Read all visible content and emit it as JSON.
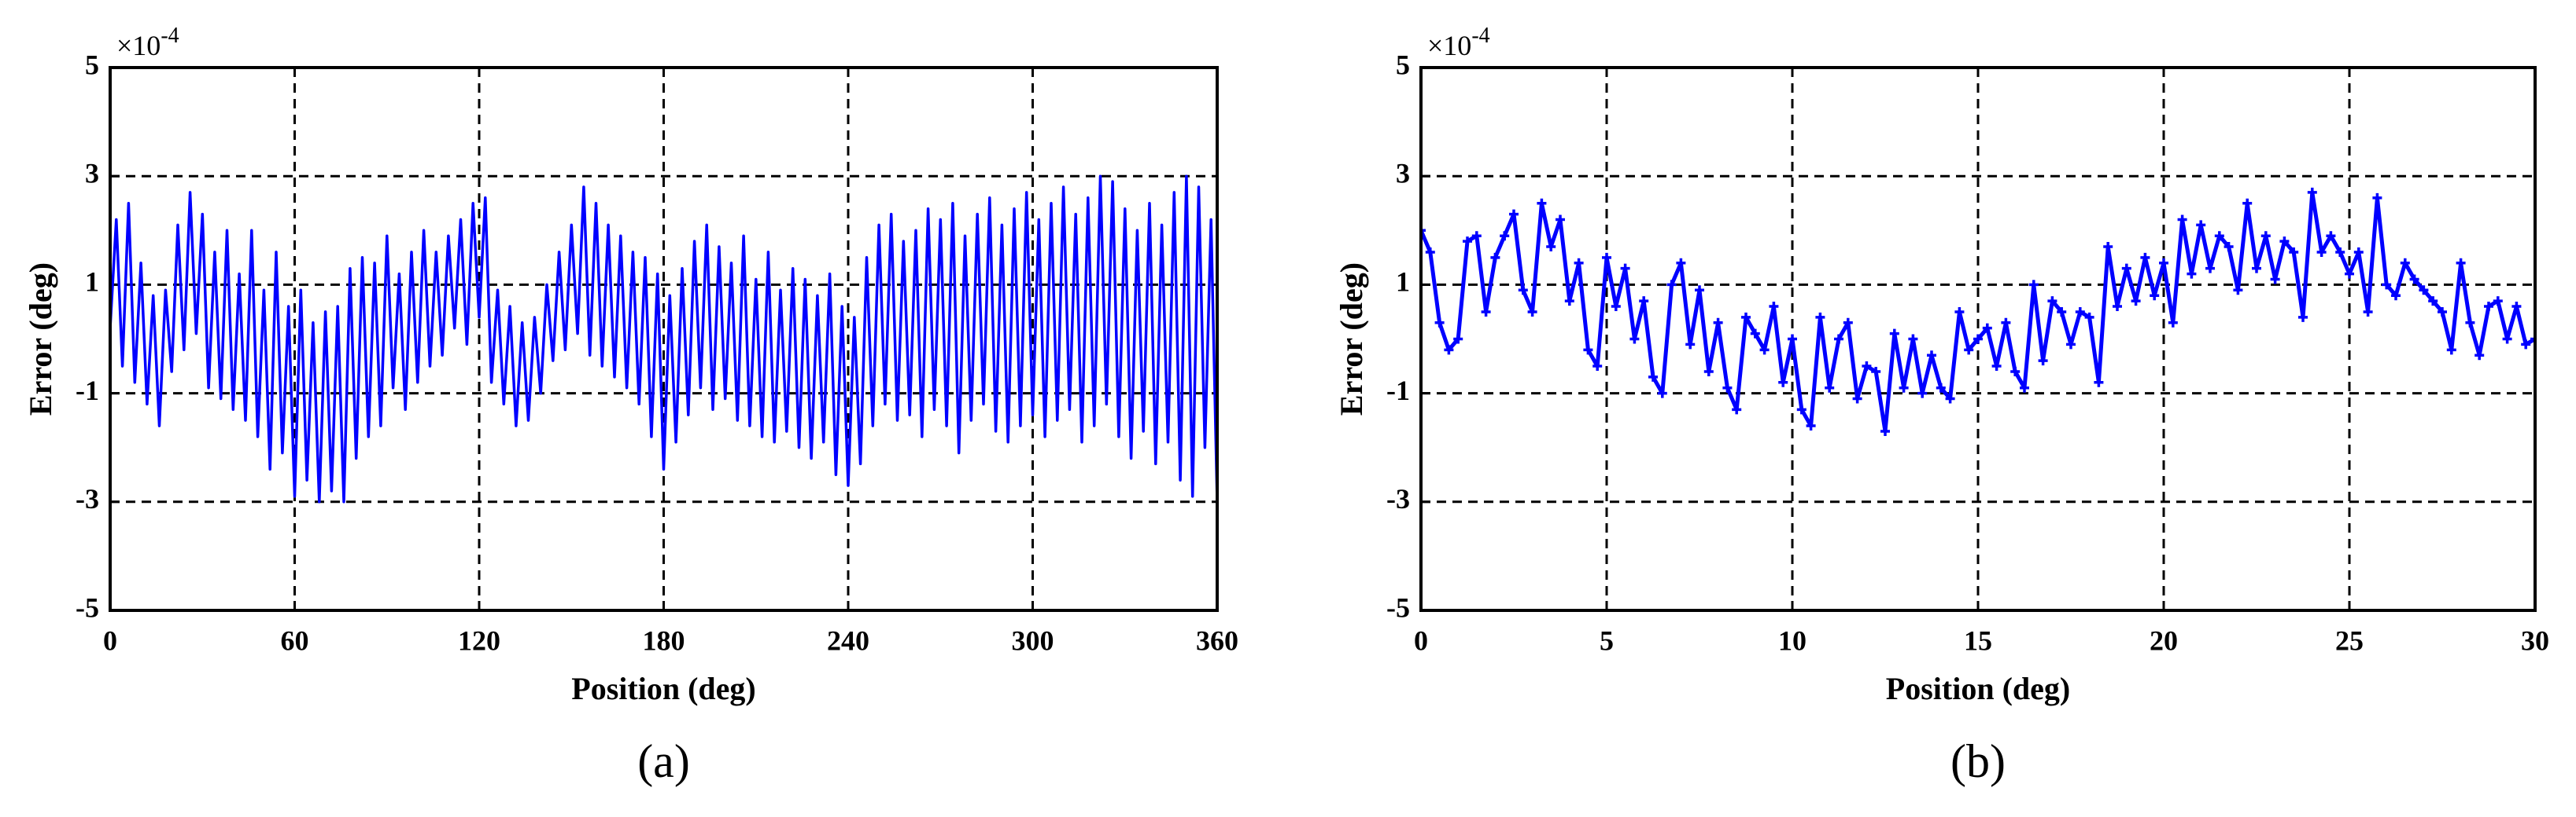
{
  "chart_data": [
    {
      "type": "line",
      "panel_label": "(a)",
      "x_label": "Position (deg)",
      "y_label": "Error (deg)",
      "y_exponent": {
        "base": "×10",
        "power": "-4"
      },
      "xlim": [
        0,
        360
      ],
      "xticks": [
        0,
        60,
        120,
        180,
        240,
        300,
        360
      ],
      "ylim": [
        -5,
        5
      ],
      "yticks": [
        -5,
        -3,
        -1,
        1,
        3,
        5
      ],
      "grid": true,
      "markers": false,
      "series": [
        {
          "color": "#0000ff",
          "x": [
            0,
            2,
            4,
            6,
            8,
            10,
            12,
            14,
            16,
            18,
            20,
            22,
            24,
            26,
            28,
            30,
            32,
            34,
            36,
            38,
            40,
            42,
            44,
            46,
            48,
            50,
            52,
            54,
            56,
            58,
            60,
            62,
            64,
            66,
            68,
            70,
            72,
            74,
            76,
            78,
            80,
            82,
            84,
            86,
            88,
            90,
            92,
            94,
            96,
            98,
            100,
            102,
            104,
            106,
            108,
            110,
            112,
            114,
            116,
            118,
            120,
            122,
            124,
            126,
            128,
            130,
            132,
            134,
            136,
            138,
            140,
            142,
            144,
            146,
            148,
            150,
            152,
            154,
            156,
            158,
            160,
            162,
            164,
            166,
            168,
            170,
            172,
            174,
            176,
            178,
            180,
            182,
            184,
            186,
            188,
            190,
            192,
            194,
            196,
            198,
            200,
            202,
            204,
            206,
            208,
            210,
            212,
            214,
            216,
            218,
            220,
            222,
            224,
            226,
            228,
            230,
            232,
            234,
            236,
            238,
            240,
            242,
            244,
            246,
            248,
            250,
            252,
            254,
            256,
            258,
            260,
            262,
            264,
            266,
            268,
            270,
            272,
            274,
            276,
            278,
            280,
            282,
            284,
            286,
            288,
            290,
            292,
            294,
            296,
            298,
            300,
            302,
            304,
            306,
            308,
            310,
            312,
            314,
            316,
            318,
            320,
            322,
            324,
            326,
            328,
            330,
            332,
            334,
            336,
            338,
            340,
            342,
            344,
            346,
            348,
            350,
            352,
            354,
            356,
            358,
            360
          ],
          "values": [
            0.2,
            2.2,
            -0.5,
            2.5,
            -0.8,
            1.4,
            -1.2,
            0.8,
            -1.6,
            0.9,
            -0.6,
            2.1,
            -0.2,
            2.7,
            0.1,
            2.3,
            -0.9,
            1.6,
            -1.1,
            2.0,
            -1.3,
            1.2,
            -1.5,
            2.0,
            -1.8,
            0.9,
            -2.4,
            1.6,
            -2.1,
            0.6,
            -2.9,
            0.9,
            -2.6,
            0.3,
            -3.0,
            0.5,
            -2.8,
            0.6,
            -3.0,
            1.3,
            -2.2,
            1.5,
            -1.8,
            1.4,
            -1.6,
            1.9,
            -0.9,
            1.2,
            -1.3,
            1.6,
            -0.8,
            2.0,
            -0.5,
            1.6,
            -0.3,
            1.9,
            0.2,
            2.2,
            -0.1,
            2.5,
            0.4,
            2.6,
            -0.8,
            0.9,
            -1.2,
            0.6,
            -1.6,
            0.3,
            -1.5,
            0.4,
            -1.0,
            1.0,
            -0.4,
            1.6,
            -0.2,
            2.1,
            0.1,
            2.8,
            -0.3,
            2.5,
            -0.5,
            2.1,
            -0.7,
            1.9,
            -0.9,
            1.6,
            -1.2,
            1.5,
            -1.8,
            1.2,
            -2.4,
            0.8,
            -1.9,
            1.3,
            -1.4,
            1.8,
            -0.9,
            2.1,
            -1.3,
            1.7,
            -1.1,
            1.4,
            -1.5,
            1.9,
            -1.6,
            1.1,
            -1.8,
            1.6,
            -1.9,
            0.9,
            -1.7,
            1.3,
            -2.0,
            1.1,
            -2.2,
            0.8,
            -1.9,
            1.2,
            -2.5,
            0.6,
            -2.7,
            0.4,
            -2.3,
            1.5,
            -1.6,
            2.1,
            -1.2,
            2.3,
            -1.5,
            1.8,
            -1.4,
            2.0,
            -1.8,
            2.4,
            -1.3,
            2.2,
            -1.6,
            2.5,
            -2.1,
            1.9,
            -1.5,
            2.3,
            -1.2,
            2.6,
            -1.7,
            2.1,
            -1.9,
            2.4,
            -1.6,
            2.7,
            -1.4,
            2.2,
            -1.8,
            2.5,
            -1.5,
            2.8,
            -1.3,
            2.3,
            -1.9,
            2.6,
            -1.6,
            3.0,
            -1.2,
            2.9,
            -1.8,
            2.4,
            -2.2,
            2.0,
            -1.7,
            2.5,
            -2.3,
            2.1,
            -1.9,
            2.7,
            -2.6,
            3.0,
            -2.9,
            2.8,
            -2.0,
            2.2,
            -3.0
          ]
        }
      ]
    },
    {
      "type": "line",
      "panel_label": "(b)",
      "x_label": "Position (deg)",
      "y_label": "Error (deg)",
      "y_exponent": {
        "base": "×10",
        "power": "-4"
      },
      "xlim": [
        0,
        30
      ],
      "xticks": [
        0,
        5,
        10,
        15,
        20,
        25,
        30
      ],
      "ylim": [
        -5,
        5
      ],
      "yticks": [
        -5,
        -3,
        -1,
        1,
        3,
        5
      ],
      "grid": true,
      "markers": true,
      "series": [
        {
          "color": "#0000ff",
          "x": [
            0,
            0.25,
            0.5,
            0.75,
            1,
            1.25,
            1.5,
            1.75,
            2,
            2.25,
            2.5,
            2.75,
            3,
            3.25,
            3.5,
            3.75,
            4,
            4.25,
            4.5,
            4.75,
            5,
            5.25,
            5.5,
            5.75,
            6,
            6.25,
            6.5,
            6.75,
            7,
            7.25,
            7.5,
            7.75,
            8,
            8.25,
            8.5,
            8.75,
            9,
            9.25,
            9.5,
            9.75,
            10,
            10.25,
            10.5,
            10.75,
            11,
            11.25,
            11.5,
            11.75,
            12,
            12.25,
            12.5,
            12.75,
            13,
            13.25,
            13.5,
            13.75,
            14,
            14.25,
            14.5,
            14.75,
            15,
            15.25,
            15.5,
            15.75,
            16,
            16.25,
            16.5,
            16.75,
            17,
            17.25,
            17.5,
            17.75,
            18,
            18.25,
            18.5,
            18.75,
            19,
            19.25,
            19.5,
            19.75,
            20,
            20.25,
            20.5,
            20.75,
            21,
            21.25,
            21.5,
            21.75,
            22,
            22.25,
            22.5,
            22.75,
            23,
            23.25,
            23.5,
            23.75,
            24,
            24.25,
            24.5,
            24.75,
            25,
            25.25,
            25.5,
            25.75,
            26,
            26.25,
            26.5,
            26.75,
            27,
            27.25,
            27.5,
            27.75,
            28,
            28.25,
            28.5,
            28.75,
            29,
            29.25,
            29.5,
            29.75,
            30
          ],
          "values": [
            2.0,
            1.6,
            0.3,
            -0.2,
            0.0,
            1.8,
            1.9,
            0.5,
            1.5,
            1.9,
            2.3,
            0.9,
            0.5,
            2.5,
            1.7,
            2.2,
            0.7,
            1.4,
            -0.2,
            -0.5,
            1.5,
            0.6,
            1.3,
            0.0,
            0.7,
            -0.7,
            -1.0,
            1.0,
            1.4,
            -0.1,
            0.9,
            -0.6,
            0.3,
            -0.9,
            -1.3,
            0.4,
            0.1,
            -0.2,
            0.6,
            -0.8,
            0.0,
            -1.3,
            -1.6,
            0.4,
            -0.9,
            0.0,
            0.3,
            -1.1,
            -0.5,
            -0.6,
            -1.7,
            0.1,
            -0.9,
            0.0,
            -1.0,
            -0.3,
            -0.9,
            -1.1,
            0.5,
            -0.2,
            0.0,
            0.2,
            -0.5,
            0.3,
            -0.6,
            -0.9,
            1.0,
            -0.4,
            0.7,
            0.5,
            -0.1,
            0.5,
            0.4,
            -0.8,
            1.7,
            0.6,
            1.3,
            0.7,
            1.5,
            0.8,
            1.4,
            0.3,
            2.2,
            1.2,
            2.1,
            1.3,
            1.9,
            1.7,
            0.9,
            2.5,
            1.3,
            1.9,
            1.1,
            1.8,
            1.6,
            0.4,
            2.7,
            1.6,
            1.9,
            1.6,
            1.2,
            1.6,
            0.5,
            2.6,
            1.0,
            0.8,
            1.4,
            1.1,
            0.9,
            0.7,
            0.5,
            -0.2,
            1.4,
            0.3,
            -0.3,
            0.6,
            0.7,
            0.0,
            0.6,
            -0.1,
            0.0
          ]
        }
      ]
    }
  ]
}
